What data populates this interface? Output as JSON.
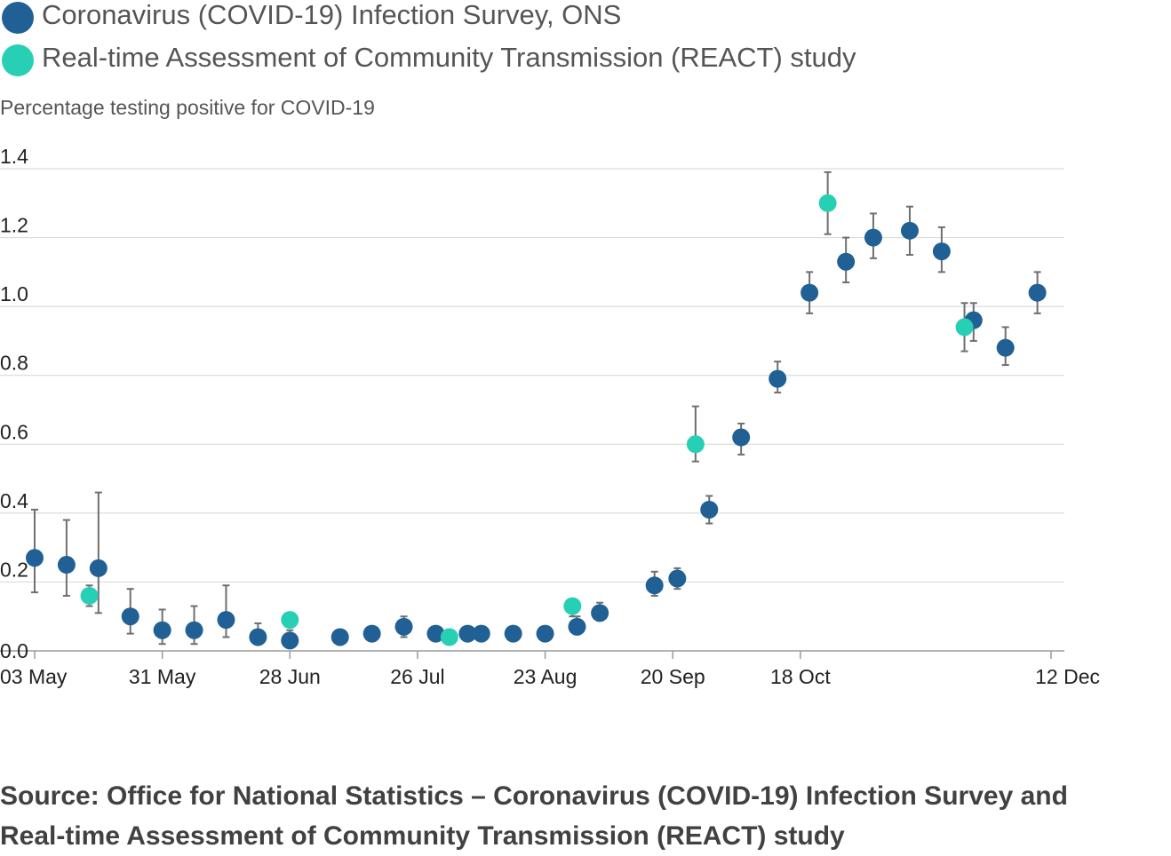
{
  "legend": [
    {
      "label": "Coronavirus (COVID-19) Infection Survey, ONS",
      "color": "#206095"
    },
    {
      "label": "Real-time Assessment of Community Transmission (REACT) study",
      "color": "#27d0b5"
    }
  ],
  "source": {
    "line1": "Source: Office for National Statistics – Coronavirus (COVID-19) Infection Survey and",
    "line2": "Real-time Assessment of Community Transmission (REACT) study"
  },
  "chart_data": {
    "type": "scatter",
    "title": "",
    "xlabel": "",
    "ylabel": "Percentage testing positive for COVID-19",
    "x_ticks": [
      "03 May",
      "31 May",
      "28 Jun",
      "26 Jul",
      "23 Aug",
      "20 Sep",
      "18 Oct",
      "12 Dec"
    ],
    "y_ticks": [
      "0.0",
      "0.2",
      "0.4",
      "0.6",
      "0.8",
      "1.0",
      "1.2",
      "1.4"
    ],
    "ylim": [
      0,
      1.4
    ],
    "xlim": [
      "2020-05-03",
      "2020-12-12"
    ],
    "grid": true,
    "error_bars": true,
    "legend_position": "top",
    "series": [
      {
        "name": "Coronavirus (COVID-19) Infection Survey, ONS",
        "color": "#206095",
        "points": [
          {
            "x": "2020-05-03",
            "y": 0.27,
            "lo": 0.17,
            "hi": 0.41
          },
          {
            "x": "2020-05-10",
            "y": 0.25,
            "lo": 0.16,
            "hi": 0.38
          },
          {
            "x": "2020-05-17",
            "y": 0.24,
            "lo": 0.11,
            "hi": 0.46
          },
          {
            "x": "2020-05-24",
            "y": 0.1,
            "lo": 0.05,
            "hi": 0.18
          },
          {
            "x": "2020-05-31",
            "y": 0.06,
            "lo": 0.02,
            "hi": 0.12
          },
          {
            "x": "2020-06-07",
            "y": 0.06,
            "lo": 0.02,
            "hi": 0.13
          },
          {
            "x": "2020-06-14",
            "y": 0.09,
            "lo": 0.04,
            "hi": 0.19
          },
          {
            "x": "2020-06-21",
            "y": 0.04,
            "lo": 0.02,
            "hi": 0.08
          },
          {
            "x": "2020-06-28",
            "y": 0.03,
            "lo": 0.01,
            "hi": 0.06
          },
          {
            "x": "2020-07-09",
            "y": 0.04,
            "lo": 0.03,
            "hi": 0.06
          },
          {
            "x": "2020-07-16",
            "y": 0.05,
            "lo": 0.04,
            "hi": 0.07
          },
          {
            "x": "2020-07-23",
            "y": 0.07,
            "lo": 0.04,
            "hi": 0.1
          },
          {
            "x": "2020-07-30",
            "y": 0.05,
            "lo": 0.04,
            "hi": 0.07
          },
          {
            "x": "2020-08-06",
            "y": 0.05,
            "lo": 0.04,
            "hi": 0.07
          },
          {
            "x": "2020-08-09",
            "y": 0.05,
            "lo": 0.04,
            "hi": 0.07
          },
          {
            "x": "2020-08-16",
            "y": 0.05,
            "lo": 0.04,
            "hi": 0.07
          },
          {
            "x": "2020-08-23",
            "y": 0.05,
            "lo": 0.04,
            "hi": 0.07
          },
          {
            "x": "2020-08-30",
            "y": 0.07,
            "lo": 0.06,
            "hi": 0.1
          },
          {
            "x": "2020-09-04",
            "y": 0.11,
            "lo": 0.09,
            "hi": 0.14
          },
          {
            "x": "2020-09-16",
            "y": 0.19,
            "lo": 0.16,
            "hi": 0.23
          },
          {
            "x": "2020-09-21",
            "y": 0.21,
            "lo": 0.18,
            "hi": 0.24
          },
          {
            "x": "2020-09-28",
            "y": 0.41,
            "lo": 0.37,
            "hi": 0.45
          },
          {
            "x": "2020-10-05",
            "y": 0.62,
            "lo": 0.57,
            "hi": 0.66
          },
          {
            "x": "2020-10-13",
            "y": 0.79,
            "lo": 0.75,
            "hi": 0.84
          },
          {
            "x": "2020-10-20",
            "y": 1.04,
            "lo": 0.98,
            "hi": 1.1
          },
          {
            "x": "2020-10-28",
            "y": 1.13,
            "lo": 1.07,
            "hi": 1.2
          },
          {
            "x": "2020-11-03",
            "y": 1.2,
            "lo": 1.14,
            "hi": 1.27
          },
          {
            "x": "2020-11-11",
            "y": 1.22,
            "lo": 1.15,
            "hi": 1.29
          },
          {
            "x": "2020-11-18",
            "y": 1.16,
            "lo": 1.1,
            "hi": 1.23
          },
          {
            "x": "2020-11-25",
            "y": 0.96,
            "lo": 0.9,
            "hi": 1.01
          },
          {
            "x": "2020-12-02",
            "y": 0.88,
            "lo": 0.83,
            "hi": 0.94
          },
          {
            "x": "2020-12-09",
            "y": 1.04,
            "lo": 0.98,
            "hi": 1.1
          }
        ]
      },
      {
        "name": "Real-time Assessment of Community Transmission (REACT) study",
        "color": "#27d0b5",
        "points": [
          {
            "x": "2020-05-15",
            "y": 0.16,
            "lo": 0.13,
            "hi": 0.19
          },
          {
            "x": "2020-06-28",
            "y": 0.09,
            "lo": 0.07,
            "hi": 0.11
          },
          {
            "x": "2020-08-02",
            "y": 0.04,
            "lo": 0.03,
            "hi": 0.05
          },
          {
            "x": "2020-08-29",
            "y": 0.13,
            "lo": 0.1,
            "hi": 0.15
          },
          {
            "x": "2020-09-25",
            "y": 0.6,
            "lo": 0.55,
            "hi": 0.71
          },
          {
            "x": "2020-10-24",
            "y": 1.3,
            "lo": 1.21,
            "hi": 1.39
          },
          {
            "x": "2020-11-23",
            "y": 0.94,
            "lo": 0.87,
            "hi": 1.01
          }
        ]
      }
    ]
  }
}
